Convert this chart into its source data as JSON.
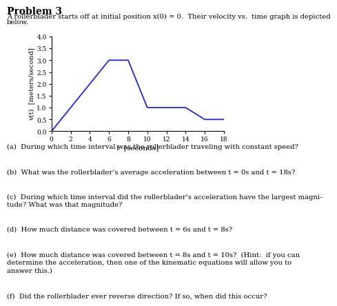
{
  "title": "Problem 3",
  "problem_text_line1": "A rollerblader starts off at initial position x(0) = 0.  Their velocity vs.  time graph is depicted",
  "problem_text_line2": "below.",
  "graph": {
    "t": [
      0,
      6,
      8,
      10,
      14,
      16,
      18
    ],
    "v": [
      0,
      3,
      3,
      1,
      1,
      0.5,
      0.5
    ],
    "xlabel": "t  [seconds]",
    "ylabel": "v(t)  [meters/second]",
    "ylim": [
      0,
      4
    ],
    "xlim": [
      0,
      18
    ],
    "xticks": [
      0,
      2,
      4,
      6,
      8,
      10,
      12,
      14,
      16,
      18
    ],
    "yticks": [
      0,
      0.5,
      1,
      1.5,
      2,
      2.5,
      3,
      3.5,
      4
    ],
    "line_color": "#3333bb",
    "line_width": 1.4
  },
  "qa": [
    {
      "label": "(a)",
      "text": "During which time interval was the rollerblader traveling with constant speed?",
      "lines": 1
    },
    {
      "label": "(b)",
      "text": "What was the rollerblader’s average acceleration between t = 0s and t = 18s?",
      "lines": 1
    },
    {
      "label": "(c)",
      "text": "During which time interval did the rollerblader’s acceleration have the largest magni-\ntude? What was that magnitude?",
      "lines": 2
    },
    {
      "label": "(d)",
      "text": "How much distance was covered between t = 6s and t = 8s?",
      "lines": 1
    },
    {
      "label": "(e)",
      "text": "How much distance was covered between t = 8s and t = 10s?  (Hint:  if you can\ndetermine the acceleration, then one of the kinematic equations will allow you to\nanswer this.)",
      "lines": 3
    },
    {
      "label": "(f)",
      "text": "Did the rollerblader ever reverse direction? If so, when did this occur?",
      "lines": 1
    }
  ],
  "background_color": "#ffffff"
}
